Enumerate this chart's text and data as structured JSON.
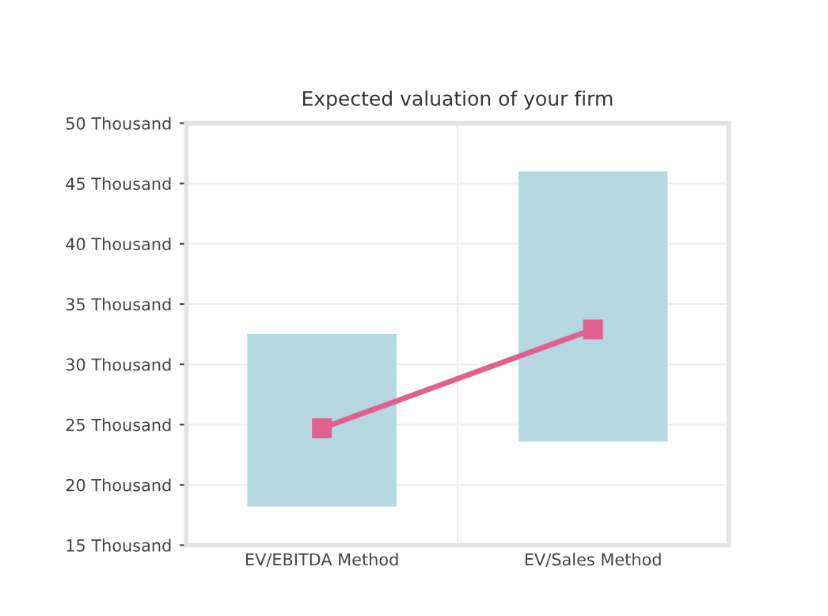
{
  "chart_data": {
    "type": "bar",
    "title": "Expected valuation of your firm",
    "categories": [
      "EV/EBITDA Method",
      "EV/Sales Method"
    ],
    "series": [
      {
        "color": "#b4d7e0",
        "values": [
          14.3,
          22.4
        ],
        "base": [
          18.2,
          23.6
        ]
      },
      {
        "type": "line",
        "color": "#e0608f",
        "values": [
          24.7,
          32.9
        ],
        "marker": "square"
      }
    ],
    "ylim": [
      15,
      50
    ],
    "yticks": [
      {
        "value": 15,
        "label": "15 Thousand"
      },
      {
        "value": 20,
        "label": "20 Thousand"
      },
      {
        "value": 25,
        "label": "25 Thousand"
      },
      {
        "value": 30,
        "label": "30 Thousand"
      },
      {
        "value": 35,
        "label": "35 Thousand"
      },
      {
        "value": 40,
        "label": "40 Thousand"
      },
      {
        "value": 45,
        "label": "45 Thousand"
      },
      {
        "value": 50,
        "label": "50 Thousand"
      }
    ],
    "grid": true,
    "legend": false
  }
}
